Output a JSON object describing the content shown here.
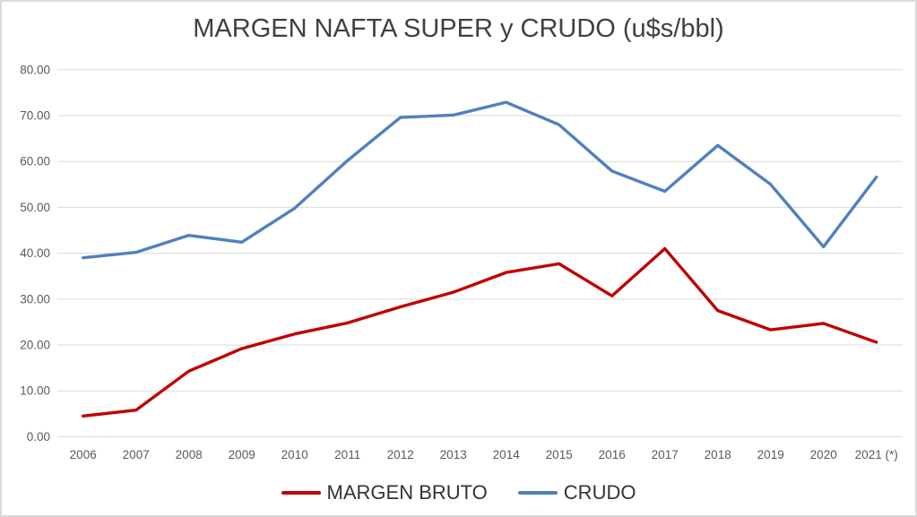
{
  "window": {
    "background": "#ffffff",
    "border_color": "#d9d9d9"
  },
  "chart_data": {
    "type": "line",
    "title": "MARGEN NAFTA SUPER y CRUDO (u$s/bbl)",
    "categories": [
      "2006",
      "2007",
      "2008",
      "2009",
      "2010",
      "2011",
      "2012",
      "2013",
      "2014",
      "2015",
      "2016",
      "2017",
      "2018",
      "2019",
      "2020",
      "2021 (*)"
    ],
    "series": [
      {
        "name": "MARGEN BRUTO",
        "color": "#C00000",
        "values": [
          4.5,
          5.8,
          14.3,
          19.2,
          22.4,
          24.8,
          28.3,
          31.5,
          35.8,
          37.7,
          30.7,
          41.0,
          27.5,
          23.3,
          24.7,
          20.6
        ]
      },
      {
        "name": "CRUDO",
        "color": "#4F81BD",
        "values": [
          39.0,
          40.2,
          43.9,
          42.4,
          49.8,
          60.2,
          69.6,
          70.1,
          72.9,
          68.0,
          57.9,
          53.5,
          63.5,
          55.0,
          41.4,
          56.6
        ]
      }
    ],
    "ylim": [
      0,
      80
    ],
    "ytick_step": 10,
    "ytick_labels": [
      "0.00",
      "10.00",
      "20.00",
      "30.00",
      "40.00",
      "50.00",
      "60.00",
      "70.00",
      "80.00"
    ],
    "xlabel": "",
    "ylabel": "",
    "grid": true,
    "legend_position": "bottom",
    "colors": {
      "gridline": "#d9d9d9",
      "axis_tick_label": "#595959",
      "title": "#404040",
      "legend_text": "#333333"
    }
  }
}
